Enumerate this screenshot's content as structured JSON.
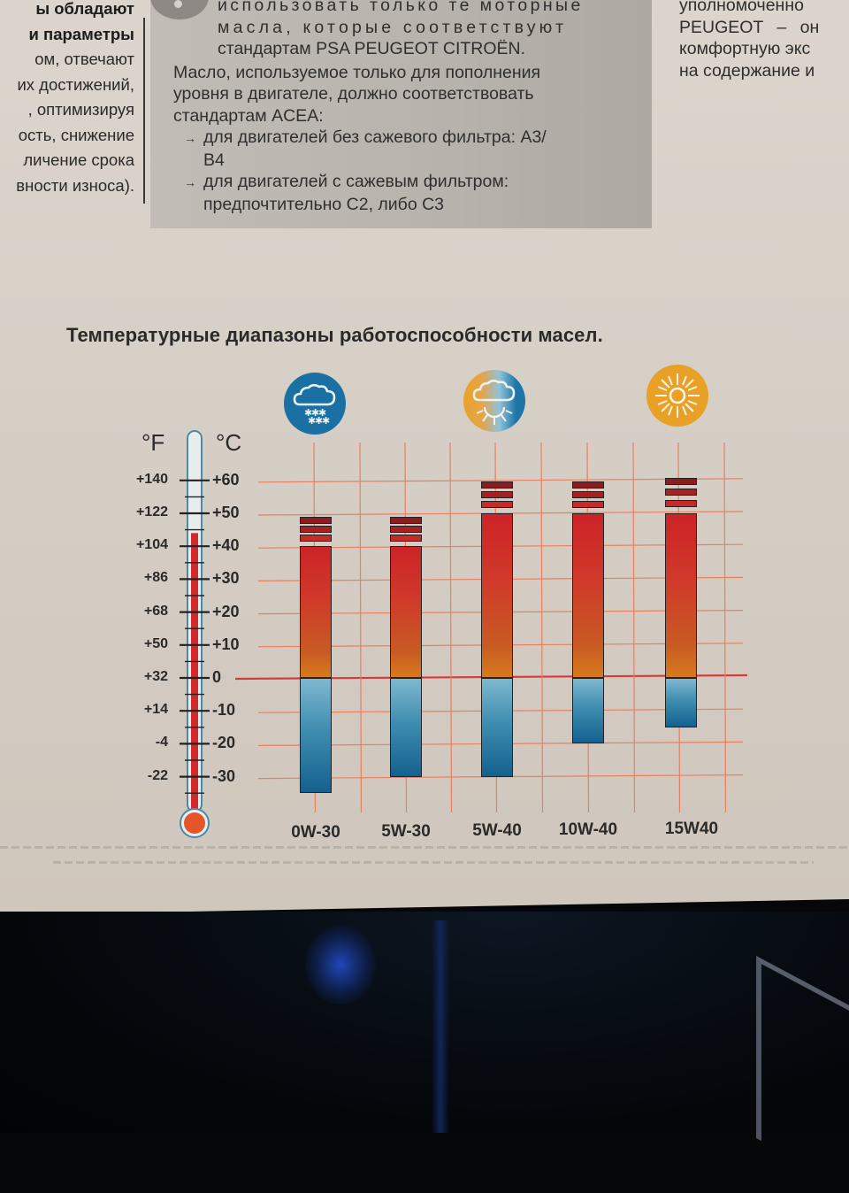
{
  "page_text": {
    "left_column": [
      {
        "text": "ы обладают",
        "bold": true
      },
      {
        "text": "и параметры",
        "bold": true
      },
      {
        "text": "ом, отвечают",
        "bold": false
      },
      {
        "text": "их достижений,",
        "bold": false
      },
      {
        "text": ", оптимизируя",
        "bold": false
      },
      {
        "text": "ость, снижение",
        "bold": false
      },
      {
        "text": "личение срока",
        "bold": false
      },
      {
        "text": "вности износа).",
        "bold": false
      }
    ],
    "grey_box": {
      "line1": "использовать только те моторные",
      "line2": "масла, которые соответствуют",
      "line3": "стандартам PSA PEUGEOT CITROËN.",
      "para2_line1": "Масло, используемое только для пополнения",
      "para2_line2": "уровня в двигателе, должно соответствовать",
      "para2_line3": "стандартам ACEA:",
      "bullet1_line1": "для двигателей без сажевого фильтра: A3/",
      "bullet1_line2": "B4",
      "bullet2_line1": "для двигателей с сажевым фильтром:",
      "bullet2_line2": "предпочтительно C2, либо C3",
      "arrow": "→"
    },
    "right_column": [
      "уполномоченно",
      "PEUGEOT – он",
      "комфортную экс",
      "на содержание и"
    ]
  },
  "chart_data": {
    "type": "bar",
    "subtype": "floating-range",
    "title": "Температурные диапазоны работоспособности масел.",
    "categories": [
      "0W-30",
      "5W-30",
      "5W-40",
      "10W-40",
      "15W40"
    ],
    "series": [
      {
        "name": "min_temp_C",
        "values": [
          -35,
          -30,
          -30,
          -20,
          -15
        ]
      },
      {
        "name": "max_temp_C",
        "values": [
          40,
          40,
          50,
          50,
          50
        ]
      },
      {
        "name": "max_temp_extended_C",
        "values": [
          48,
          48,
          59,
          59,
          60
        ]
      }
    ],
    "xlabel": "",
    "ylabel_left": "°F",
    "ylabel_right": "°C",
    "celsius_ticks": [
      "+60",
      "+50",
      "+40",
      "+30",
      "+20",
      "+10",
      "0",
      "-10",
      "-20",
      "-30"
    ],
    "fahrenheit_ticks": [
      "+140",
      "+122",
      "+104",
      "+86",
      "+68",
      "+50",
      "+32",
      "+14",
      "-4",
      "-22"
    ],
    "ylim_C": [
      -35,
      62
    ],
    "grid": true,
    "legend_icons": [
      {
        "name": "snow-cloud-icon",
        "meaning": "cold / snow",
        "color": "#1a6fa3",
        "over_category": "0W-30"
      },
      {
        "name": "sun-cloud-icon",
        "meaning": "mixed / temperate",
        "color": "#e8a53a",
        "over_category": "5W-40"
      },
      {
        "name": "sun-icon",
        "meaning": "hot / sun",
        "color": "#e9a026",
        "over_category": "15W40"
      }
    ],
    "thermometer_fill_C": 44,
    "colors": {
      "positive_range": "#cc2327",
      "positive_range_bottom": "#d67a1c",
      "negative_range_top": "#7fb8d0",
      "negative_range_bottom": "#14618f",
      "grid": "#e8805f",
      "zero_line": "#d83a3a",
      "stripe_dark": "#8c1c20",
      "stripe_light": "#c82a2c"
    }
  }
}
